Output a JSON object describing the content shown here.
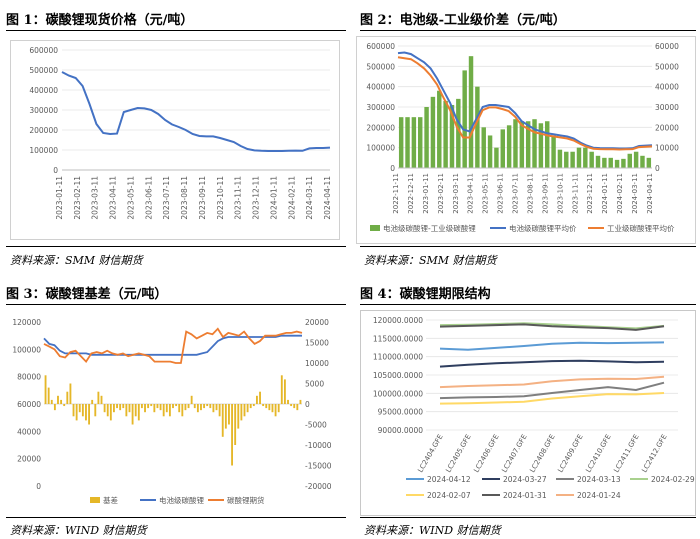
{
  "figures": [
    {
      "title": "图 1：碳酸锂现货价格（元/吨）",
      "source": "资料来源：SMM  财信期货"
    },
    {
      "title": "图 2：电池级-工业级价差（元/吨）",
      "source": "资料来源：SMM  财信期货"
    },
    {
      "title": "图 3：碳酸锂基差（元/吨）",
      "source": "资料来源：WIND  财信期货"
    },
    {
      "title": "图 4：碳酸锂期限结构",
      "source": "资料来源：WIND  财信期货"
    }
  ],
  "colors": {
    "blue": "#4472c4",
    "green": "#70ad47",
    "orange": "#ed7d31",
    "gold": "#e5b728"
  },
  "chart_data": [
    {
      "type": "line",
      "title": "",
      "ylim": [
        0,
        600000
      ],
      "yticks": [
        "0",
        "100000",
        "200000",
        "300000",
        "400000",
        "500000",
        "600000"
      ],
      "xticks": [
        "2023-01-11",
        "2023-02-11",
        "2023-03-11",
        "2023-04-11",
        "2023-05-11",
        "2023-06-11",
        "2023-07-11",
        "2023-08-11",
        "2023-09-11",
        "2023-10-11",
        "2023-11-11",
        "2023-12-11",
        "2024-01-11",
        "2024-02-11",
        "2024-03-11",
        "2024-04-11"
      ],
      "series": [
        {
          "values": [
            490000,
            472000,
            460000,
            420000,
            330000,
            230000,
            185000,
            180000,
            182000,
            290000,
            300000,
            310000,
            308000,
            300000,
            280000,
            250000,
            228000,
            215000,
            200000,
            180000,
            170000,
            168000,
            168000,
            160000,
            150000,
            140000,
            120000,
            105000,
            98000,
            96000,
            95000,
            95000,
            95000,
            96000,
            97000,
            96000,
            108000,
            110000,
            110000,
            112000
          ]
        }
      ]
    },
    {
      "type": "bar+line",
      "title": "",
      "ylim": [
        0,
        600000
      ],
      "y2lim": [
        0,
        60000
      ],
      "yticks": [
        "0",
        "100000",
        "200000",
        "300000",
        "400000",
        "500000",
        "600000"
      ],
      "y2ticks": [
        "0",
        "10000",
        "20000",
        "30000",
        "40000",
        "50000",
        "60000"
      ],
      "xticks": [
        "2022-11-11",
        "2022-12-11",
        "2023-01-11",
        "2023-02-11",
        "2023-03-11",
        "2023-04-11",
        "2023-05-11",
        "2023-06-11",
        "2023-07-11",
        "2023-08-11",
        "2023-09-11",
        "2023-10-11",
        "2023-11-11",
        "2023-12-11",
        "2024-01-11",
        "2024-02-11",
        "2024-03-11",
        "2024-04-11"
      ],
      "legend": [
        "电池级碳酸锂-工业级碳酸锂",
        "电池级碳酸锂平均价",
        "工业级碳酸锂平均价"
      ],
      "spread": [
        25000,
        25000,
        25000,
        25000,
        30000,
        35000,
        38000,
        33000,
        31000,
        34000,
        48000,
        55000,
        40000,
        20000,
        16000,
        10000,
        19000,
        21000,
        24000,
        23000,
        23000,
        24000,
        22000,
        23000,
        16000,
        9000,
        8000,
        8000,
        10000,
        10000,
        8000,
        6000,
        5000,
        5000,
        4000,
        4500,
        7000,
        8000,
        6000,
        5000
      ],
      "battery": [
        565000,
        568000,
        560000,
        540000,
        520000,
        490000,
        440000,
        380000,
        320000,
        240000,
        190000,
        180000,
        240000,
        300000,
        310000,
        310000,
        305000,
        300000,
        270000,
        230000,
        210000,
        190000,
        180000,
        170000,
        165000,
        160000,
        155000,
        145000,
        125000,
        110000,
        100000,
        98000,
        97000,
        97000,
        96000,
        96000,
        97000,
        108000,
        110000,
        112000
      ],
      "industrial": [
        545000,
        540000,
        535000,
        515000,
        490000,
        455000,
        410000,
        345000,
        285000,
        205000,
        150000,
        150000,
        220000,
        285000,
        298000,
        298000,
        290000,
        280000,
        252000,
        210000,
        192000,
        175000,
        168000,
        160000,
        155000,
        150000,
        145000,
        135000,
        118000,
        104000,
        95000,
        93000,
        92000,
        92000,
        91000,
        92000,
        93000,
        103000,
        105000,
        106000
      ]
    },
    {
      "type": "bar+line",
      "title": "",
      "ylim": [
        0,
        120000
      ],
      "y2lim": [
        -20000,
        20000
      ],
      "yticks": [
        "0",
        "20000",
        "40000",
        "60000",
        "80000",
        "100000",
        "120000"
      ],
      "y2ticks": [
        "-20000",
        "-15000",
        "-10000",
        "-5000",
        "0",
        "5000",
        "10000",
        "15000",
        "20000"
      ],
      "legend": [
        "基差",
        "电池级碳酸锂",
        "碳酸锂期货"
      ],
      "basis": [
        7000,
        4000,
        1000,
        -1500,
        2000,
        1000,
        -500,
        3000,
        5000,
        -3000,
        -4000,
        -2000,
        -3000,
        -4000,
        -5000,
        1000,
        -3000,
        3000,
        2000,
        -2000,
        -3000,
        -4000,
        -2000,
        -1000,
        -1500,
        -1000,
        -3000,
        -2000,
        -5000,
        -3000,
        -4000,
        -1000,
        -2000,
        -1000,
        -500,
        -2000,
        -1000,
        -1500,
        -3000,
        -2000,
        -3000,
        -1000,
        -500,
        -2000,
        -3000,
        -1500,
        -1000,
        2000,
        -1000,
        -2000,
        -1500,
        -1000,
        -500,
        -1000,
        -2000,
        -1500,
        -3000,
        -8000,
        -6000,
        -5000,
        -15000,
        -10000,
        -6000,
        -4000,
        -3000,
        -2000,
        -1000,
        -500,
        2000,
        3000,
        -500,
        -1000,
        -1500,
        -2000,
        -3000,
        -2000,
        7000,
        6000,
        1000,
        -500,
        -1000,
        -1500,
        1000
      ],
      "battery": [
        108000,
        104000,
        103000,
        99000,
        97000,
        97000,
        97000,
        97000,
        97000,
        96000,
        96000,
        96000,
        96000,
        96000,
        96000,
        96000,
        96000,
        96000,
        96000,
        96000,
        96000,
        96000,
        96000,
        96000,
        96000,
        96000,
        96000,
        96000,
        96000,
        96000,
        97000,
        98000,
        102000,
        106000,
        108000,
        109000,
        109000,
        109000,
        109000,
        109000,
        109000,
        109000,
        109000,
        109000,
        109000,
        110000,
        110000,
        110000,
        110000,
        110000
      ],
      "futures": [
        104000,
        102000,
        100000,
        95000,
        94000,
        98000,
        99000,
        95000,
        91000,
        97000,
        98000,
        97000,
        99000,
        97000,
        96000,
        97000,
        95000,
        96000,
        97000,
        96000,
        95000,
        91000,
        91000,
        91000,
        91000,
        90000,
        90000,
        113000,
        111000,
        108000,
        110000,
        112000,
        111000,
        115000,
        109000,
        112000,
        111000,
        110000,
        113000,
        108000,
        104000,
        106000,
        110000,
        110000,
        110000,
        111000,
        112000,
        112000,
        113000,
        112000
      ]
    },
    {
      "type": "line",
      "title": "",
      "ylim": [
        90000,
        120000
      ],
      "yticks": [
        "90000.0000",
        "95000.0000",
        "100000.0000",
        "105000.0000",
        "110000.0000",
        "115000.0000",
        "120000.0000"
      ],
      "categories": [
        "LC2404.GFE",
        "LC2405.GFE",
        "LC2406.GFE",
        "LC2407.GFE",
        "LC2408.GFE",
        "LC2409.GFE",
        "LC2410.GFE",
        "LC2411.GFE",
        "LC2412.GFE"
      ],
      "series": [
        {
          "name": "2024-04-12",
          "color": "#5b9bd5",
          "values": [
            112200,
            111900,
            112400,
            112900,
            113500,
            113800,
            113700,
            113800,
            113900
          ]
        },
        {
          "name": "2024-03-27",
          "color": "#2f3e5f",
          "values": [
            107300,
            107800,
            108200,
            108500,
            108800,
            108900,
            108700,
            108500,
            108600
          ]
        },
        {
          "name": "2024-03-13",
          "color": "#7f7f7f",
          "values": [
            98700,
            98900,
            99000,
            99200,
            100100,
            100900,
            101700,
            100900,
            102900
          ]
        },
        {
          "name": "2024-02-29",
          "color": "#a9d18e",
          "values": [
            118600,
            118700,
            118900,
            119100,
            118800,
            118400,
            118000,
            117700,
            118400
          ]
        },
        {
          "name": "2024-02-07",
          "color": "#ffd966",
          "values": [
            97200,
            97300,
            97500,
            97700,
            98600,
            99200,
            99800,
            99700,
            100100
          ]
        },
        {
          "name": "2024-01-31",
          "color": "#595959",
          "values": [
            118200,
            118400,
            118600,
            118800,
            118300,
            118000,
            117800,
            117300,
            118300
          ]
        },
        {
          "name": "2024-01-24",
          "color": "#f4b183",
          "values": [
            101700,
            102000,
            102200,
            102400,
            103300,
            103800,
            104000,
            103900,
            104500
          ]
        }
      ]
    }
  ]
}
